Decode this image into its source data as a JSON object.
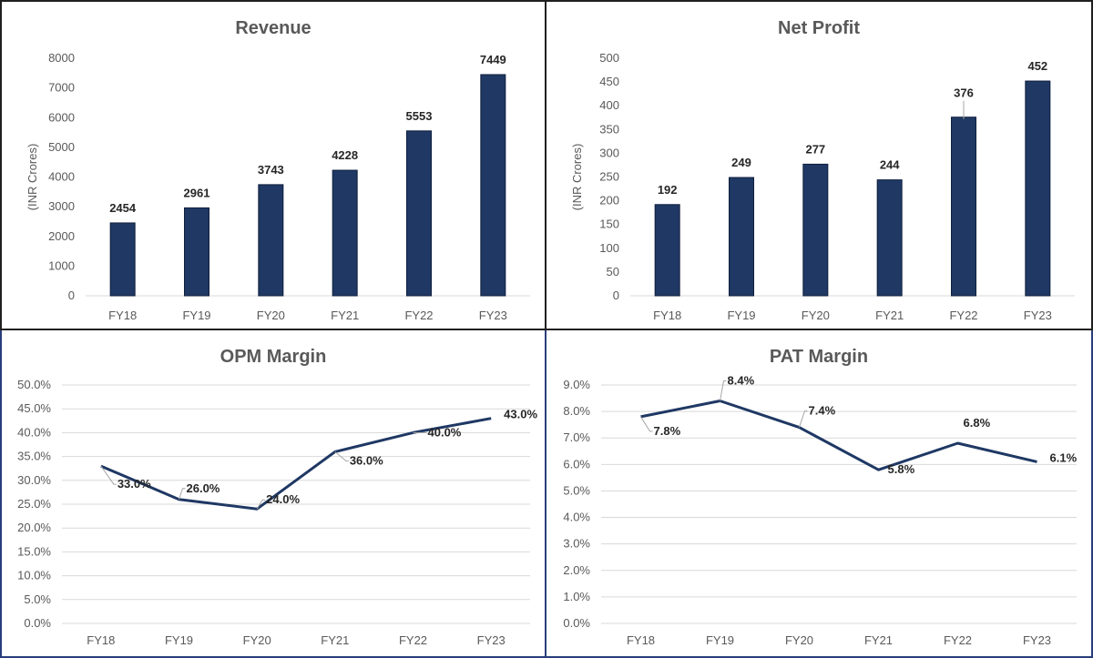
{
  "colors": {
    "series": "#1f3864",
    "grid": "#d9d9d9",
    "text": "#595959"
  },
  "chart_data": [
    {
      "type": "bar",
      "title": "Revenue",
      "ylabel": "(INR Crores)",
      "xlabel": "",
      "categories": [
        "FY18",
        "FY19",
        "FY20",
        "FY21",
        "FY22",
        "FY23"
      ],
      "values": [
        2454,
        2961,
        3743,
        4228,
        5553,
        7449
      ],
      "data_labels": [
        "2454",
        "2961",
        "3743",
        "4228",
        "5553",
        "7449"
      ],
      "ylim": [
        0,
        8000
      ],
      "yticks": [
        0,
        1000,
        2000,
        3000,
        4000,
        5000,
        6000,
        7000,
        8000
      ],
      "ytick_labels": [
        "0",
        "1000",
        "2000",
        "3000",
        "4000",
        "5000",
        "6000",
        "7000",
        "8000"
      ],
      "grid": false
    },
    {
      "type": "bar",
      "title": "Net Profit",
      "ylabel": "(INR Crores)",
      "xlabel": "",
      "categories": [
        "FY18",
        "FY19",
        "FY20",
        "FY21",
        "FY22",
        "FY23"
      ],
      "values": [
        192,
        249,
        277,
        244,
        376,
        452
      ],
      "data_labels": [
        "192",
        "249",
        "277",
        "244",
        "376",
        "452"
      ],
      "ylim": [
        0,
        500
      ],
      "yticks": [
        0,
        50,
        100,
        150,
        200,
        250,
        300,
        350,
        400,
        450,
        500
      ],
      "ytick_labels": [
        "0",
        "50",
        "100",
        "150",
        "200",
        "250",
        "300",
        "350",
        "400",
        "450",
        "500"
      ],
      "grid": false
    },
    {
      "type": "line",
      "title": "OPM Margin",
      "ylabel": "",
      "xlabel": "",
      "categories": [
        "FY18",
        "FY19",
        "FY20",
        "FY21",
        "FY22",
        "FY23"
      ],
      "values": [
        33.0,
        26.0,
        24.0,
        36.0,
        40.0,
        43.0
      ],
      "data_labels": [
        "33.0%",
        "26.0%",
        "24.0%",
        "36.0%",
        "40.0%",
        "43.0%"
      ],
      "ylim": [
        0,
        50
      ],
      "yticks": [
        0,
        5,
        10,
        15,
        20,
        25,
        30,
        35,
        40,
        45,
        50
      ],
      "ytick_labels": [
        "0.0%",
        "5.0%",
        "10.0%",
        "15.0%",
        "20.0%",
        "25.0%",
        "30.0%",
        "35.0%",
        "40.0%",
        "45.0%",
        "50.0%"
      ],
      "grid": true
    },
    {
      "type": "line",
      "title": "PAT Margin",
      "ylabel": "",
      "xlabel": "",
      "categories": [
        "FY18",
        "FY19",
        "FY20",
        "FY21",
        "FY22",
        "FY23"
      ],
      "values": [
        7.8,
        8.4,
        7.4,
        5.8,
        6.8,
        6.1
      ],
      "data_labels": [
        "7.8%",
        "8.4%",
        "7.4%",
        "5.8%",
        "6.8%",
        "6.1%"
      ],
      "ylim": [
        0,
        9
      ],
      "yticks": [
        0,
        1,
        2,
        3,
        4,
        5,
        6,
        7,
        8,
        9
      ],
      "ytick_labels": [
        "0.0%",
        "1.0%",
        "2.0%",
        "3.0%",
        "4.0%",
        "5.0%",
        "6.0%",
        "7.0%",
        "8.0%",
        "9.0%"
      ],
      "grid": true
    }
  ]
}
